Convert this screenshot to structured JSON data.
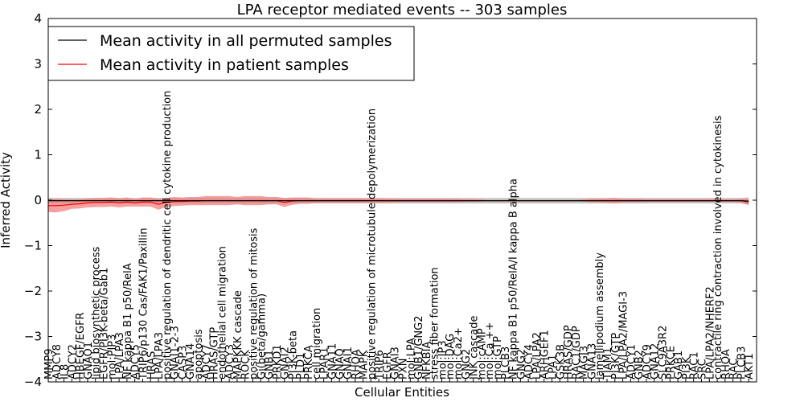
{
  "chart_data": {
    "type": "line",
    "title": "LPA receptor mediated events -- 303 samples",
    "xlabel": "Cellular Entities",
    "ylabel": "Inferred Activity",
    "ylim": [
      -4,
      4
    ],
    "yticks": [
      4,
      3,
      2,
      1,
      0,
      -1,
      -2,
      -3,
      -4
    ],
    "grid": false,
    "legend_position": "top-left",
    "series": [
      {
        "name": "Mean activity in all permuted samples",
        "color": "#000000",
        "band_color": "#b0b0b0"
      },
      {
        "name": "Mean activity in patient samples",
        "color": "#ff0000",
        "band_color": "#f08080"
      }
    ],
    "categories": [
      "MMP9",
      "ADCY8",
      "IL8",
      "ADCY2",
      "HBEGF/EGFR",
      "GNAO1",
      "lipid biosynthetic process",
      "EGFR/PI3K-beta/Gab1",
      "mol:PIP3",
      "LPA/LPA3",
      "NF kappa B1 p50/RelA",
      "ADCY5",
      "TRIP6/p130 Cas/FAK1/Paxillin",
      "HRAS",
      "LPA/LPA3",
      "positive regulation of dendritic cell cytokine production",
      "GNAI1-2-3",
      "CASP3",
      "GNA14",
      "apoptosis",
      "ADCY7",
      "HRAS/GTP",
      "endothelial cell migration",
      "ADCY3",
      "MAPKKK cascade",
      "ROCK",
      "positive regulation of mitosis",
      "Gi(beta/gamma)",
      "GNB1",
      "PRKD1",
      "GNAI2",
      "PI3K-beta",
      "PLD1",
      "PRKCA",
      "cell migration",
      "LPAR1",
      "GNA11",
      "GNAQ",
      "GNAI1",
      "RHOA",
      "MAPK",
      "positive regulation of microtubule depolymerization",
      "TRIP6",
      "EGFR",
      "GNAI3",
      "PXN",
      "mol:LPA",
      "GNB1/GNG2",
      "NFKBIA",
      "stress fiber formation",
      "mol:IP3",
      "mol:DAG",
      "mol:Ca2+",
      "GNG2",
      "JNK cascade",
      "mol:cAMP",
      "mol:Ca ++",
      "mol:GTP",
      "PLCB3",
      "NF kappa B1 p50/RelA/I kappa B alpha",
      "GNG2",
      "ADCY4",
      "LPA/LPA2",
      "ARHGEF1",
      "LPA1",
      "GSK3B",
      "HRAS/GDP",
      "RAC1/GDP",
      "MAGI3",
      "GNA13",
      "lamellipodium assembly",
      "TIAM1",
      "PI3K/GTP",
      "LPA/LPA2/MAGI-3",
      "ADCY1",
      "GNB2",
      "ADCY9",
      "GNA12",
      "SLC9A3R2",
      "PRKCE",
      "GAB1",
      "PI3K",
      "RAC1",
      "SRC",
      "LPA/LPA2/NHERF2",
      "contractile ring contraction involved in cytokinesis",
      "RHOA",
      "RAC",
      "PLCB3",
      "AKT1"
    ],
    "x_range": [
      0,
      90
    ],
    "patient_mean": [
      -0.12,
      -0.12,
      -0.11,
      -0.09,
      -0.08,
      -0.06,
      -0.05,
      -0.05,
      -0.04,
      -0.06,
      -0.04,
      -0.06,
      -0.04,
      -0.04,
      -0.09,
      -0.05,
      -0.03,
      -0.03,
      -0.02,
      -0.02,
      -0.01,
      -0.01,
      -0.01,
      -0.01,
      -0.01,
      -0.01,
      -0.01,
      -0.01,
      -0.01,
      -0.01,
      -0.05,
      -0.02,
      -0.01,
      -0.01,
      -0.01,
      -0.01,
      -0.01,
      -0.01,
      -0.01,
      -0.01,
      -0.01,
      -0.01,
      -0.01,
      -0.01,
      -0.01,
      -0.01,
      -0.01,
      -0.01,
      -0.01,
      -0.01,
      -0.01,
      -0.01,
      -0.01,
      -0.01,
      -0.01,
      -0.01,
      -0.01,
      -0.01,
      -0.01,
      -0.01,
      -0.01,
      -0.01,
      -0.01,
      -0.01,
      -0.01,
      -0.01,
      -0.01,
      -0.01,
      -0.01,
      -0.01,
      -0.01,
      -0.01,
      -0.01,
      -0.01,
      -0.01,
      -0.01,
      -0.01,
      -0.01,
      -0.01,
      -0.01,
      -0.01,
      -0.01,
      -0.01,
      -0.01,
      -0.01,
      -0.01,
      -0.01,
      -0.01,
      -0.01,
      -0.04
    ],
    "patient_band": [
      0.14,
      0.15,
      0.13,
      0.1,
      0.1,
      0.1,
      0.1,
      0.1,
      0.1,
      0.1,
      0.1,
      0.08,
      0.1,
      0.1,
      0.12,
      0.1,
      0.1,
      0.09,
      0.09,
      0.09,
      0.1,
      0.1,
      0.1,
      0.1,
      0.08,
      0.1,
      0.1,
      0.1,
      0.08,
      0.08,
      0.1,
      0.08,
      0.07,
      0.07,
      0.05,
      0.05,
      0.05,
      0.05,
      0.05,
      0.05,
      0.05,
      0.05,
      0.05,
      0.05,
      0.04,
      0.04,
      0.04,
      0.04,
      0.04,
      0.04,
      0.04,
      0.04,
      0.04,
      0.03,
      0.03,
      0.02,
      0.01,
      0.01,
      0.01,
      0.01,
      0.01,
      0.01,
      0.01,
      0.01,
      0.01,
      0.01,
      0.01,
      0.01,
      0.02,
      0.04,
      0.04,
      0.05,
      0.06,
      0.04,
      0.04,
      0.04,
      0.03,
      0.03,
      0.03,
      0.03,
      0.03,
      0.03,
      0.03,
      0.03,
      0.03,
      0.03,
      0.03,
      0.03,
      0.04,
      0.07
    ],
    "permuted_mean": [
      -0.01,
      -0.01,
      -0.01,
      -0.01,
      -0.01,
      -0.01,
      -0.01,
      -0.01,
      -0.01,
      -0.01,
      -0.01,
      -0.01,
      -0.01,
      -0.01,
      -0.01,
      -0.01,
      -0.01,
      -0.01,
      -0.01,
      -0.01,
      -0.01,
      -0.01,
      -0.01,
      -0.01,
      -0.01,
      -0.01,
      -0.01,
      -0.01,
      -0.01,
      -0.01,
      -0.01,
      -0.01,
      -0.01,
      -0.01,
      -0.01,
      -0.01,
      -0.01,
      -0.01,
      -0.01,
      -0.01,
      -0.01,
      -0.01,
      -0.01,
      -0.01,
      -0.01,
      -0.01,
      -0.01,
      -0.01,
      -0.01,
      -0.01,
      -0.01,
      -0.01,
      -0.01,
      -0.01,
      -0.01,
      -0.01,
      -0.01,
      -0.01,
      -0.01,
      -0.01,
      -0.01,
      -0.01,
      -0.01,
      -0.01,
      -0.01,
      -0.01,
      -0.01,
      -0.01,
      -0.01,
      -0.01,
      -0.01,
      -0.01,
      -0.01,
      -0.01,
      -0.01,
      -0.01,
      -0.01,
      -0.01,
      -0.01,
      -0.01,
      -0.01,
      -0.01,
      -0.01,
      -0.01,
      -0.01,
      -0.01,
      -0.01,
      -0.01,
      -0.01,
      -0.02
    ],
    "permuted_band": [
      0.06,
      0.06,
      0.06,
      0.06,
      0.06,
      0.06,
      0.06,
      0.06,
      0.06,
      0.06,
      0.06,
      0.06,
      0.06,
      0.06,
      0.06,
      0.06,
      0.06,
      0.06,
      0.06,
      0.06,
      0.06,
      0.06,
      0.06,
      0.06,
      0.06,
      0.06,
      0.06,
      0.06,
      0.06,
      0.06,
      0.06,
      0.06,
      0.06,
      0.06,
      0.06,
      0.06,
      0.06,
      0.06,
      0.06,
      0.06,
      0.06,
      0.06,
      0.06,
      0.06,
      0.06,
      0.06,
      0.06,
      0.06,
      0.06,
      0.06,
      0.06,
      0.06,
      0.06,
      0.06,
      0.06,
      0.06,
      0.06,
      0.06,
      0.06,
      0.06,
      0.06,
      0.06,
      0.06,
      0.06,
      0.06,
      0.06,
      0.06,
      0.06,
      0.06,
      0.06,
      0.06,
      0.06,
      0.06,
      0.06,
      0.06,
      0.06,
      0.06,
      0.06,
      0.06,
      0.06,
      0.06,
      0.06,
      0.06,
      0.06,
      0.06,
      0.06,
      0.06,
      0.06,
      0.06,
      0.08
    ]
  }
}
